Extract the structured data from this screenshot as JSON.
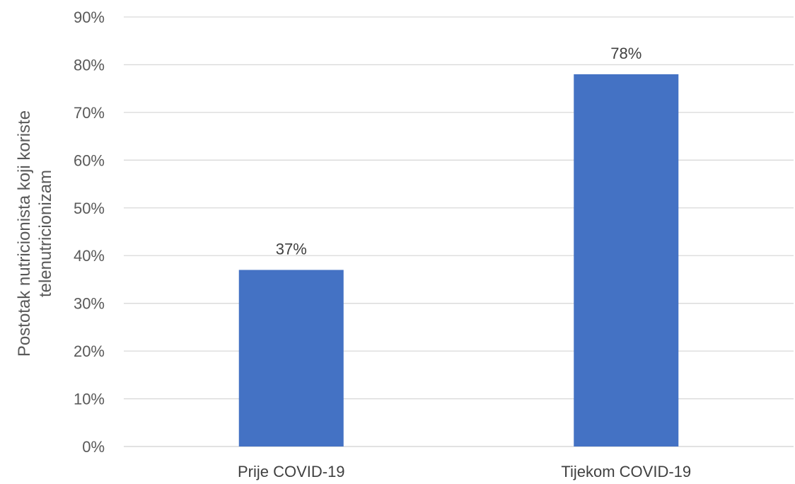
{
  "chart_data": {
    "type": "bar",
    "categories": [
      "Prije COVID-19",
      "Tijekom COVID-19"
    ],
    "values": [
      37,
      78
    ],
    "data_labels": [
      "37%",
      "78%"
    ],
    "title": "",
    "xlabel": "",
    "ylabel_lines": [
      "Postotak nutricionista koji koriste",
      "telenutricionizam"
    ],
    "ylim": [
      0,
      90
    ],
    "yticks": [
      0,
      10,
      20,
      30,
      40,
      50,
      60,
      70,
      80,
      90
    ],
    "ytick_labels": [
      "0%",
      "10%",
      "20%",
      "30%",
      "40%",
      "50%",
      "60%",
      "70%",
      "80%",
      "90%"
    ],
    "grid": true,
    "legend": "none",
    "bar_color": "#4472c4"
  }
}
